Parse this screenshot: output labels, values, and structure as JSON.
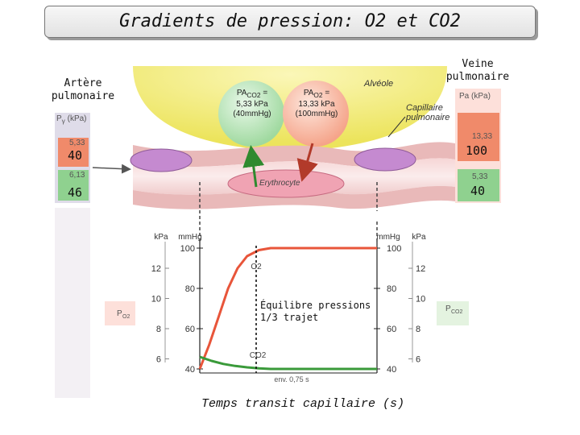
{
  "title": "Gradients de pression: O2 et CO2",
  "left_label": [
    "Artère",
    "pulmonaire"
  ],
  "right_label": [
    "Veine",
    "pulmonaire"
  ],
  "left_box": {
    "header": "P",
    "header_sub": "γ",
    "header_unit": "(kPa)",
    "val1": "5,33",
    "val1_big": "40",
    "val2": "6,13",
    "val2_big": "46",
    "val1_color": "#f08a6a",
    "val2_color": "#8fd18f"
  },
  "right_box": {
    "header": "Pa (kPa)",
    "val1": "13,33",
    "val1_big": "100",
    "val2": "5,33",
    "val2_big": "40",
    "val1_color": "#f08a6a",
    "val2_color": "#8fd18f"
  },
  "alveole_label": "Alvéole",
  "capillaire_label": [
    "Capillaire",
    "pulmonaire"
  ],
  "erythrocyte_label": "Erythrocyte",
  "bubble_green": {
    "line1": "PA",
    "sub1": "CO",
    "sub2": "2",
    "eq": "=",
    "line2": "5,33 kPa",
    "line3": "(40mmHg)",
    "color": "#9fd99f"
  },
  "bubble_red": {
    "line1": "PA",
    "sub1": "O",
    "sub2": "2",
    "eq": "=",
    "line2": "13,33 kPa",
    "line3": "(100mmHg)",
    "color": "#f5a48a"
  },
  "chart_data": {
    "type": "line",
    "x_label": "Temps transit capillaire (s)",
    "x_annotation": "env. 0,75 s",
    "left_axis_units": [
      "kPa",
      "mmHg"
    ],
    "right_axis_units": [
      "mmHg",
      "kPa"
    ],
    "mmhg_ticks": [
      100,
      80,
      60,
      40
    ],
    "kpa_ticks": [
      12,
      10,
      8,
      6
    ],
    "ylim_mmHg": [
      40,
      100
    ],
    "series": [
      {
        "name": "O2",
        "color": "#e8553a",
        "x": [
          0,
          0.04,
          0.08,
          0.12,
          0.16,
          0.2,
          0.25,
          0.3,
          0.4,
          0.5,
          0.6,
          0.75
        ],
        "y": [
          40,
          52,
          66,
          80,
          90,
          96,
          99,
          100,
          100,
          100,
          100,
          100
        ]
      },
      {
        "name": "CO2",
        "color": "#3a9a3a",
        "x": [
          0,
          0.05,
          0.1,
          0.15,
          0.2,
          0.25,
          0.3,
          0.5,
          0.75
        ],
        "y": [
          46,
          44,
          42.5,
          41.5,
          40.8,
          40.3,
          40,
          40,
          40
        ]
      }
    ],
    "annotation": [
      "Équilibre pressions",
      "1/3 trajet"
    ],
    "left_box_label": {
      "main": "P",
      "sub": "O2"
    },
    "right_box_label": {
      "main": "P",
      "sub": "CO2"
    }
  }
}
